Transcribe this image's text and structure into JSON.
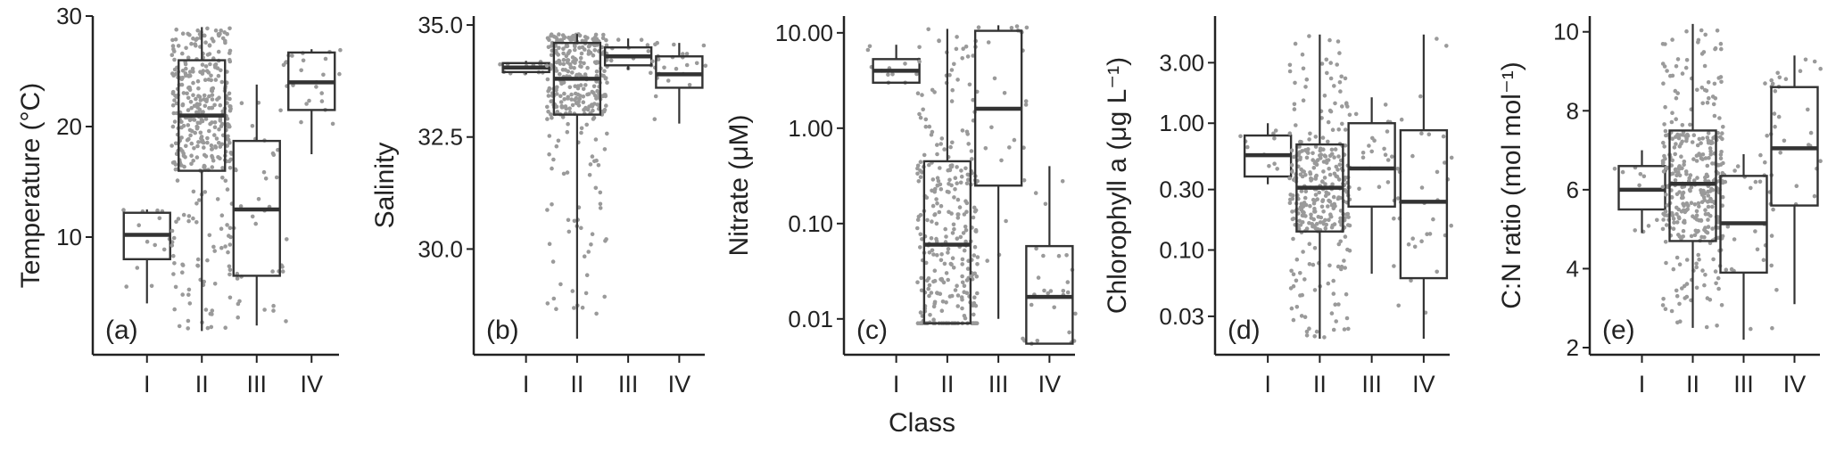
{
  "shared_xlabel": "Class",
  "chart_data": [
    {
      "type": "box",
      "panel_label": "(a)",
      "ylabel": "Temperature (°C)",
      "scale": "linear",
      "ylim": [
        0,
        30
      ],
      "yticks": [
        10,
        20,
        30
      ],
      "ytick_labels": [
        "10",
        "20",
        "30"
      ],
      "categories": [
        "I",
        "II",
        "III",
        "IV"
      ],
      "boxes": [
        {
          "q1": 8.0,
          "median": 10.2,
          "q3": 12.2,
          "whisker_low": 4.0,
          "whisker_high": 12.5,
          "jitter_min": 5.0,
          "jitter_max": 12.5,
          "n_points": 14
        },
        {
          "q1": 16.0,
          "median": 21.0,
          "q3": 26.0,
          "whisker_low": 1.5,
          "whisker_high": 29.0,
          "jitter_min": 1.5,
          "jitter_max": 29.0,
          "n_points": 380
        },
        {
          "q1": 6.5,
          "median": 12.5,
          "q3": 18.7,
          "whisker_low": 2.0,
          "whisker_high": 23.8,
          "jitter_min": 2.0,
          "jitter_max": 23.8,
          "n_points": 42
        },
        {
          "q1": 21.5,
          "median": 24.0,
          "q3": 26.7,
          "whisker_low": 17.5,
          "whisker_high": 27.0,
          "jitter_min": 17.8,
          "jitter_max": 27.0,
          "n_points": 24
        }
      ]
    },
    {
      "type": "box",
      "panel_label": "(b)",
      "ylabel": "Salinity",
      "scale": "linear",
      "ylim": [
        27.8,
        35.2
      ],
      "yticks": [
        30.0,
        32.5,
        35.0
      ],
      "ytick_labels": [
        "30.0",
        "32.5",
        "35.0"
      ],
      "categories": [
        "I",
        "II",
        "III",
        "IV"
      ],
      "boxes": [
        {
          "q1": 33.95,
          "median": 34.05,
          "q3": 34.15,
          "whisker_low": 33.9,
          "whisker_high": 34.2,
          "jitter_min": 33.9,
          "jitter_max": 34.2,
          "n_points": 14
        },
        {
          "q1": 33.0,
          "median": 33.8,
          "q3": 34.6,
          "whisker_low": 28.0,
          "whisker_high": 34.8,
          "jitter_min": 28.5,
          "jitter_max": 34.8,
          "n_points": 330
        },
        {
          "q1": 34.1,
          "median": 34.3,
          "q3": 34.5,
          "whisker_low": 34.0,
          "whisker_high": 34.7,
          "jitter_min": 34.0,
          "jitter_max": 34.7,
          "n_points": 14
        },
        {
          "q1": 33.6,
          "median": 33.9,
          "q3": 34.3,
          "whisker_low": 32.8,
          "whisker_high": 34.6,
          "jitter_min": 32.8,
          "jitter_max": 34.6,
          "n_points": 22
        }
      ]
    },
    {
      "type": "box",
      "panel_label": "(c)",
      "ylabel": "Nitrate (μM)",
      "scale": "log",
      "ylim": [
        0.005,
        15
      ],
      "yticks": [
        0.01,
        0.1,
        1,
        10
      ],
      "ytick_labels": [
        "0.01",
        "0.10",
        "1.00",
        "10.00"
      ],
      "categories": [
        "I",
        "II",
        "III",
        "IV"
      ],
      "boxes": [
        {
          "q1": 3.0,
          "median": 4.0,
          "q3": 5.3,
          "whisker_low": 3.0,
          "whisker_high": 7.5,
          "jitter_min": 3.0,
          "jitter_max": 7.5,
          "n_points": 12
        },
        {
          "q1": 0.009,
          "median": 0.06,
          "q3": 0.45,
          "whisker_low": 0.009,
          "whisker_high": 11.0,
          "jitter_min": 0.009,
          "jitter_max": 11.0,
          "n_points": 300
        },
        {
          "q1": 0.25,
          "median": 1.6,
          "q3": 10.5,
          "whisker_low": 0.01,
          "whisker_high": 12.0,
          "jitter_min": 0.02,
          "jitter_max": 12.0,
          "n_points": 30
        },
        {
          "q1": 0.0055,
          "median": 0.017,
          "q3": 0.058,
          "whisker_low": 0.0055,
          "whisker_high": 0.4,
          "jitter_min": 0.006,
          "jitter_max": 0.4,
          "n_points": 28
        }
      ]
    },
    {
      "type": "box",
      "panel_label": "(d)",
      "ylabel": "Chlorophyll a (μg L⁻¹)",
      "scale": "log",
      "ylim": [
        0.017,
        7
      ],
      "yticks": [
        0.03,
        0.1,
        0.3,
        1,
        3
      ],
      "ytick_labels": [
        "0.03",
        "0.10",
        "0.30",
        "1.00",
        "3.00"
      ],
      "categories": [
        "I",
        "II",
        "III",
        "IV"
      ],
      "boxes": [
        {
          "q1": 0.38,
          "median": 0.56,
          "q3": 0.8,
          "whisker_low": 0.33,
          "whisker_high": 1.0,
          "jitter_min": 0.33,
          "jitter_max": 1.0,
          "n_points": 12
        },
        {
          "q1": 0.14,
          "median": 0.31,
          "q3": 0.68,
          "whisker_low": 0.02,
          "whisker_high": 5.0,
          "jitter_min": 0.02,
          "jitter_max": 5.0,
          "n_points": 330
        },
        {
          "q1": 0.22,
          "median": 0.44,
          "q3": 1.0,
          "whisker_low": 0.065,
          "whisker_high": 1.6,
          "jitter_min": 0.07,
          "jitter_max": 1.6,
          "n_points": 30
        },
        {
          "q1": 0.06,
          "median": 0.24,
          "q3": 0.88,
          "whisker_low": 0.02,
          "whisker_high": 5.0,
          "jitter_min": 0.03,
          "jitter_max": 5.0,
          "n_points": 30
        }
      ]
    },
    {
      "type": "box",
      "panel_label": "(e)",
      "ylabel": "C:N ratio (mol mol⁻¹)",
      "scale": "linear",
      "ylim": [
        2,
        10.4
      ],
      "yticks": [
        2,
        4,
        6,
        8,
        10
      ],
      "ytick_labels": [
        "2",
        "4",
        "6",
        "8",
        "10"
      ],
      "categories": [
        "I",
        "II",
        "III",
        "IV"
      ],
      "boxes": [
        {
          "q1": 5.5,
          "median": 6.0,
          "q3": 6.6,
          "whisker_low": 4.9,
          "whisker_high": 7.0,
          "jitter_min": 4.9,
          "jitter_max": 7.0,
          "n_points": 14
        },
        {
          "q1": 4.7,
          "median": 6.15,
          "q3": 7.5,
          "whisker_low": 2.5,
          "whisker_high": 10.2,
          "jitter_min": 2.5,
          "jitter_max": 10.2,
          "n_points": 360
        },
        {
          "q1": 3.9,
          "median": 5.15,
          "q3": 6.35,
          "whisker_low": 2.2,
          "whisker_high": 6.9,
          "jitter_min": 2.2,
          "jitter_max": 6.9,
          "n_points": 30
        },
        {
          "q1": 5.6,
          "median": 7.05,
          "q3": 8.6,
          "whisker_low": 3.1,
          "whisker_high": 9.4,
          "jitter_min": 3.1,
          "jitter_max": 9.4,
          "n_points": 34
        }
      ]
    }
  ]
}
